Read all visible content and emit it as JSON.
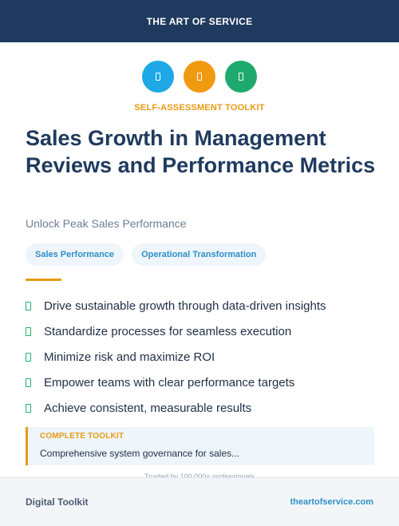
{
  "header": {
    "brand": "THE ART OF SERVICE"
  },
  "icons": [
    {
      "name": "blue-document-icon",
      "color": "#1ea8e6"
    },
    {
      "name": "orange-document-icon",
      "color": "#f09a12"
    },
    {
      "name": "green-document-icon",
      "color": "#1eaa6e"
    }
  ],
  "kicker": "SELF-ASSESSMENT TOOLKIT",
  "title": "Sales Growth in Management Reviews and Performance Metrics",
  "subtitle": "Unlock Peak Sales Performance",
  "tags": [
    "Sales Performance",
    "Operational Transformation"
  ],
  "bullets": [
    "Drive sustainable growth through data-driven insights",
    "Standardize processes for seamless execution",
    "Minimize risk and maximize ROI",
    "Empower teams with clear performance targets",
    "Achieve consistent, measurable results"
  ],
  "callout": {
    "kicker": "COMPLETE TOOLKIT",
    "text": "Comprehensive system governance for sales..."
  },
  "trusted": "Trusted by 100,000+ professionals",
  "footer": {
    "left": "Digital Toolkit",
    "right": "theartofservice.com"
  },
  "colors": {
    "navy": "#1f3a5e",
    "accent": "#e89a12",
    "link": "#2f8fc6",
    "check": "#22b06a"
  }
}
